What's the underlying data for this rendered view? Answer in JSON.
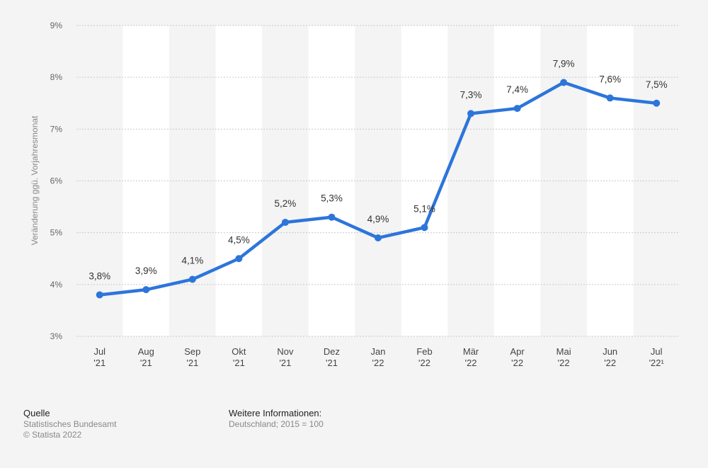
{
  "chart_data": {
    "type": "line",
    "categories": [
      [
        "Jul",
        "'21"
      ],
      [
        "Aug",
        "'21"
      ],
      [
        "Sep",
        "'21"
      ],
      [
        "Okt",
        "'21"
      ],
      [
        "Nov",
        "'21"
      ],
      [
        "Dez",
        "'21"
      ],
      [
        "Jan",
        "'22"
      ],
      [
        "Feb",
        "'22"
      ],
      [
        "Mär",
        "'22"
      ],
      [
        "Apr",
        "'22"
      ],
      [
        "Mai",
        "'22"
      ],
      [
        "Jun",
        "'22"
      ],
      [
        "Jul",
        "'22¹"
      ]
    ],
    "series": [
      {
        "values": [
          3.8,
          3.9,
          4.1,
          4.5,
          5.2,
          5.3,
          4.9,
          5.1,
          7.3,
          7.4,
          7.9,
          7.6,
          7.5
        ]
      }
    ],
    "data_labels": [
      "3,8%",
      "3,9%",
      "4,1%",
      "4,5%",
      "5,2%",
      "5,3%",
      "4,9%",
      "5,1%",
      "7,3%",
      "7,4%",
      "7,9%",
      "7,6%",
      "7,5%"
    ],
    "ylabel": "Veränderung ggü. Vorjahresmonat",
    "xlabel": "",
    "ylim": [
      3,
      9
    ],
    "yticks": [
      3,
      4,
      5,
      6,
      7,
      8,
      9
    ],
    "ytick_labels": [
      "3%",
      "4%",
      "5%",
      "6%",
      "7%",
      "8%",
      "9%"
    ],
    "grid": true,
    "line_color": "#2c75db",
    "band_color": "#ffffff",
    "background": "#f4f4f4"
  },
  "footer": {
    "source_title": "Quelle",
    "source_lines": [
      "Statistisches Bundesamt",
      "© Statista 2022"
    ],
    "info_title": "Weitere Informationen:",
    "info_lines": [
      "Deutschland; 2015 = 100"
    ]
  }
}
